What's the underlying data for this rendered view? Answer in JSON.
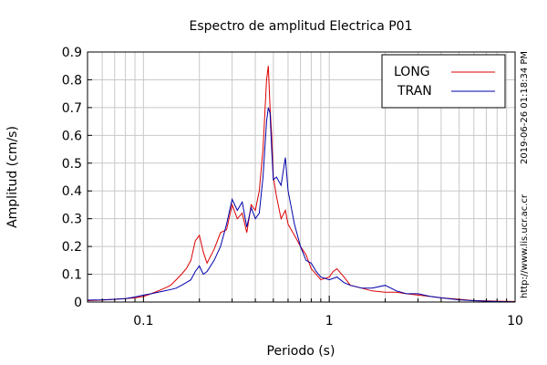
{
  "chart_data": {
    "type": "line",
    "title": "Espectro de amplitud Electrica P01",
    "xlabel": "Periodo (s)",
    "ylabel": "Amplitud (cm/s)",
    "x_scale": "log",
    "xlim": [
      0.05,
      10
    ],
    "ylim": [
      0,
      0.9
    ],
    "grid": true,
    "legend_position": "top-right",
    "x_ticks": [
      {
        "value": 0.1,
        "label": "0.1"
      },
      {
        "value": 1,
        "label": "1"
      },
      {
        "value": 10,
        "label": "10"
      }
    ],
    "y_ticks": [
      {
        "value": 0,
        "label": "0"
      },
      {
        "value": 0.1,
        "label": "0.1"
      },
      {
        "value": 0.2,
        "label": "0.2"
      },
      {
        "value": 0.3,
        "label": "0.3"
      },
      {
        "value": 0.4,
        "label": "0.4"
      },
      {
        "value": 0.5,
        "label": "0.5"
      },
      {
        "value": 0.6,
        "label": "0.6"
      },
      {
        "value": 0.7,
        "label": "0.7"
      },
      {
        "value": 0.8,
        "label": "0.8"
      },
      {
        "value": 0.9,
        "label": "0.9"
      }
    ],
    "series": [
      {
        "name": "LONG",
        "color": "#dd0000",
        "x": [
          0.05,
          0.06,
          0.07,
          0.08,
          0.09,
          0.1,
          0.11,
          0.12,
          0.13,
          0.14,
          0.15,
          0.16,
          0.17,
          0.18,
          0.19,
          0.2,
          0.21,
          0.22,
          0.24,
          0.26,
          0.28,
          0.3,
          0.32,
          0.34,
          0.36,
          0.38,
          0.4,
          0.42,
          0.44,
          0.46,
          0.47,
          0.48,
          0.49,
          0.5,
          0.52,
          0.55,
          0.58,
          0.6,
          0.65,
          0.7,
          0.75,
          0.8,
          0.85,
          0.9,
          1.0,
          1.05,
          1.1,
          1.2,
          1.3,
          1.5,
          1.7,
          2.0,
          2.3,
          2.6,
          3.0,
          3.5,
          4.0,
          5.0,
          6.0,
          7.0,
          8.0,
          10.0
        ],
        "y": [
          0.005,
          0.007,
          0.01,
          0.012,
          0.015,
          0.02,
          0.03,
          0.04,
          0.05,
          0.06,
          0.08,
          0.1,
          0.12,
          0.15,
          0.22,
          0.24,
          0.18,
          0.14,
          0.19,
          0.25,
          0.26,
          0.35,
          0.3,
          0.32,
          0.25,
          0.35,
          0.33,
          0.4,
          0.55,
          0.8,
          0.85,
          0.7,
          0.6,
          0.45,
          0.38,
          0.3,
          0.33,
          0.28,
          0.24,
          0.2,
          0.17,
          0.12,
          0.1,
          0.08,
          0.09,
          0.11,
          0.12,
          0.09,
          0.06,
          0.05,
          0.04,
          0.035,
          0.035,
          0.03,
          0.025,
          0.02,
          0.015,
          0.01,
          0.005,
          0.004,
          0.003,
          0.002
        ]
      },
      {
        "name": "TRAN",
        "color": "#0000aa",
        "x": [
          0.05,
          0.06,
          0.07,
          0.08,
          0.09,
          0.1,
          0.11,
          0.12,
          0.13,
          0.14,
          0.15,
          0.16,
          0.17,
          0.18,
          0.19,
          0.2,
          0.21,
          0.22,
          0.24,
          0.26,
          0.28,
          0.3,
          0.32,
          0.34,
          0.36,
          0.38,
          0.4,
          0.42,
          0.44,
          0.46,
          0.47,
          0.48,
          0.49,
          0.5,
          0.52,
          0.55,
          0.58,
          0.6,
          0.65,
          0.7,
          0.75,
          0.8,
          0.85,
          0.9,
          1.0,
          1.1,
          1.2,
          1.3,
          1.5,
          1.7,
          2.0,
          2.3,
          2.6,
          3.0,
          3.5,
          4.0,
          5.0,
          6.0,
          7.0,
          8.0,
          10.0
        ],
        "y": [
          0.007,
          0.008,
          0.01,
          0.012,
          0.018,
          0.025,
          0.03,
          0.035,
          0.04,
          0.045,
          0.05,
          0.06,
          0.07,
          0.08,
          0.11,
          0.13,
          0.1,
          0.11,
          0.15,
          0.2,
          0.28,
          0.37,
          0.33,
          0.36,
          0.27,
          0.34,
          0.3,
          0.32,
          0.45,
          0.65,
          0.7,
          0.68,
          0.55,
          0.44,
          0.45,
          0.42,
          0.52,
          0.4,
          0.28,
          0.2,
          0.15,
          0.14,
          0.11,
          0.09,
          0.08,
          0.09,
          0.07,
          0.06,
          0.05,
          0.05,
          0.06,
          0.04,
          0.03,
          0.03,
          0.02,
          0.015,
          0.008,
          0.005,
          0.003,
          0.002,
          0.001
        ]
      }
    ]
  },
  "side_texts": {
    "timestamp": "2019-06-26 01:18:34 PM",
    "url": "http://www.lis.ucr.ac.cr"
  }
}
